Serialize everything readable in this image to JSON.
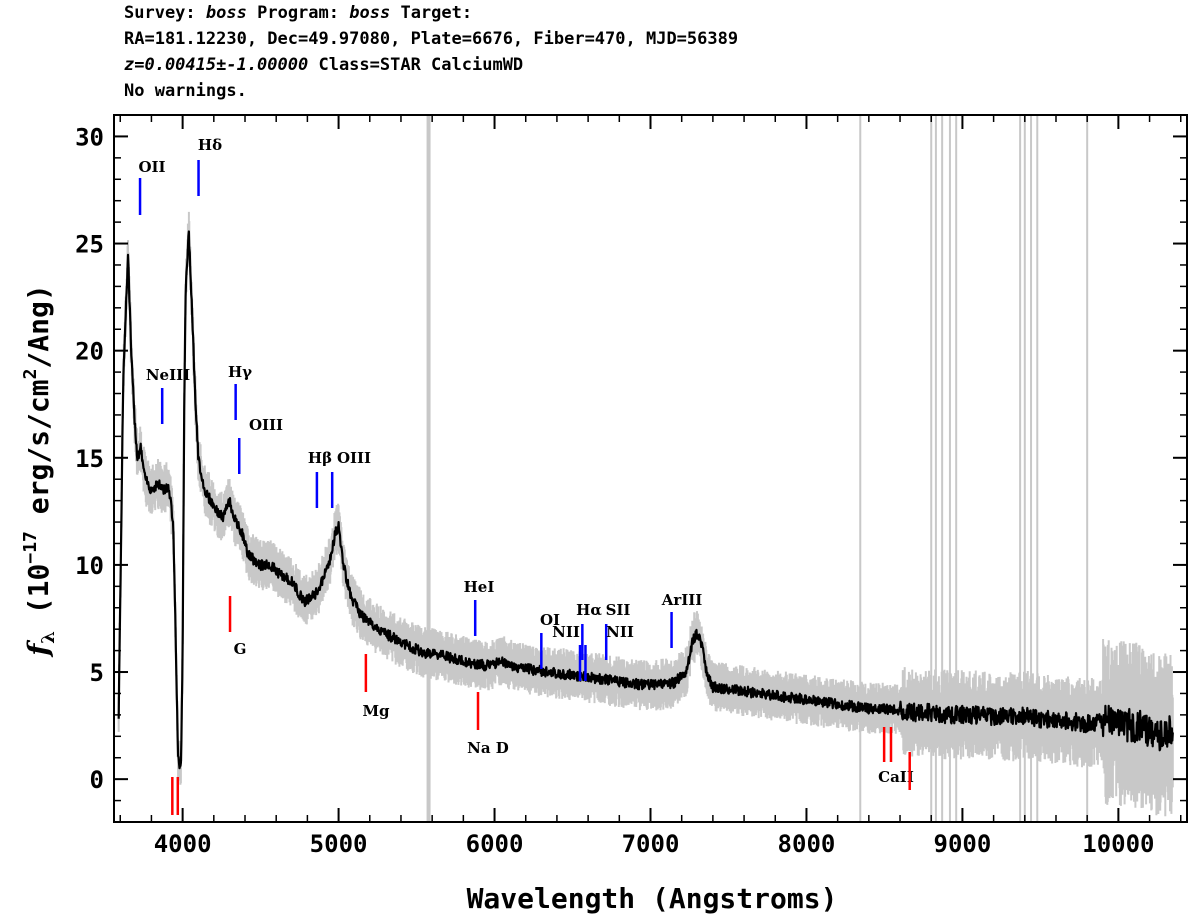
{
  "header": {
    "survey_label": "Survey:",
    "survey_value": "boss",
    "program_label": "Program:",
    "program_value": "boss",
    "target_label": "Target:",
    "line2": "RA=181.12230, Dec=49.97080, Plate=6676, Fiber=470, MJD=56389",
    "z_text": "z=0.00415±-1.00000",
    "class_text": " Class=STAR CalciumWD",
    "line4": "No warnings."
  },
  "chart_data": {
    "type": "line",
    "xlabel": "Wavelength (Angstroms)",
    "ylabel_prefix": "f",
    "ylabel_sub": "λ",
    "ylabel_unit": "(10",
    "ylabel_exp": "−17",
    "ylabel_rest": " erg/s/cm",
    "ylabel_exp2": "2",
    "ylabel_tail": "/Ang)",
    "xlim": [
      3560,
      10440
    ],
    "ylim": [
      -2,
      31
    ],
    "x_ticks": [
      4000,
      5000,
      6000,
      7000,
      8000,
      9000,
      10000
    ],
    "y_ticks": [
      0,
      5,
      10,
      15,
      20,
      25,
      30
    ],
    "grid": false,
    "series": [
      {
        "name": "",
        "color": "#000000",
        "x": [
          3590,
          3620,
          3650,
          3670,
          3690,
          3710,
          3730,
          3760,
          3800,
          3840,
          3880,
          3910,
          3940,
          3960,
          3970,
          3980,
          3990,
          4000,
          4010,
          4020,
          4040,
          4060,
          4080,
          4100,
          4140,
          4180,
          4220,
          4260,
          4300,
          4340,
          4380,
          4420,
          4460,
          4500,
          4560,
          4620,
          4700,
          4780,
          4850,
          4900,
          4950,
          4980,
          5000,
          5030,
          5080,
          5150,
          5250,
          5350,
          5450,
          5550,
          5650,
          5750,
          5850,
          5950,
          6050,
          6150,
          6250,
          6350,
          6450,
          6550,
          6650,
          6750,
          6850,
          6950,
          7050,
          7150,
          7230,
          7270,
          7300,
          7330,
          7360,
          7400,
          7500,
          7600,
          7700,
          7800,
          7900,
          8000,
          8100,
          8200,
          8300,
          8400,
          8500,
          8600,
          8700,
          8800,
          8900,
          9000,
          9100,
          9200,
          9300,
          9400,
          9500,
          9600,
          9700,
          9800,
          9900,
          10000,
          10100,
          10200,
          10300,
          10350
        ],
        "values": [
          3,
          19,
          24.5,
          20,
          17,
          15,
          15.5,
          14,
          13.5,
          13.8,
          13.5,
          13.7,
          12,
          5,
          1,
          0.7,
          0.8,
          6,
          17,
          23,
          25.5,
          22,
          18,
          15,
          13.5,
          13,
          12.5,
          12.2,
          13,
          12,
          11.5,
          10.5,
          10.2,
          10,
          10,
          9.6,
          9.2,
          8.3,
          8.6,
          9.3,
          10.4,
          11.5,
          11.8,
          10,
          8.5,
          7.6,
          7,
          6.6,
          6.2,
          5.9,
          5.8,
          5.6,
          5.4,
          5.3,
          5.5,
          5.2,
          5.1,
          5,
          4.9,
          4.8,
          4.7,
          4.6,
          4.5,
          4.4,
          4.4,
          4.5,
          5,
          6.5,
          6.8,
          6.2,
          5,
          4.3,
          4.2,
          4.1,
          4,
          3.9,
          3.8,
          3.7,
          3.6,
          3.5,
          3.4,
          3.3,
          3.3,
          3.2,
          3.1,
          3.1,
          3,
          3,
          3,
          2.9,
          2.9,
          3,
          2.8,
          2.8,
          2.7,
          2.6,
          2.7,
          2.6,
          2.5,
          2.3,
          2,
          2.3
        ]
      }
    ],
    "line_labels": [
      {
        "label": "OII",
        "x": 3727,
        "set": "emission"
      },
      {
        "label": "Hδ",
        "x": 4102,
        "set": "emission"
      },
      {
        "label": "NeIII",
        "x": 3869,
        "set": "emission"
      },
      {
        "label": "Hγ",
        "x": 4340,
        "set": "emission"
      },
      {
        "label": "OIII",
        "x": 4363,
        "set": "emission"
      },
      {
        "label": "Hβ",
        "x": 4861,
        "set": "emission"
      },
      {
        "label": "OIII",
        "x": 4959,
        "set": "emission"
      },
      {
        "label": "HeI",
        "x": 5876,
        "set": "emission"
      },
      {
        "label": "OI",
        "x": 6300,
        "set": "emission"
      },
      {
        "label": "NII",
        "x": 6548,
        "set": "emission"
      },
      {
        "label": "Hα",
        "x": 6563,
        "set": "emission"
      },
      {
        "label": "SII",
        "x": 6716,
        "set": "emission"
      },
      {
        "label": "NII",
        "x": 6583,
        "set": "emission"
      },
      {
        "label": "ArIII",
        "x": 7135,
        "set": "emission"
      },
      {
        "label": "G",
        "x": 4304,
        "set": "absorption"
      },
      {
        "label": "Mg",
        "x": 5175,
        "set": "absorption"
      },
      {
        "label": "Na D",
        "x": 5894,
        "set": "absorption"
      },
      {
        "label": "CaII",
        "x": 8542,
        "set": "absorption"
      }
    ],
    "emission_color": "#0000ff",
    "absorption_color": "#ff0000",
    "noise_color": "#c8c8c8"
  }
}
